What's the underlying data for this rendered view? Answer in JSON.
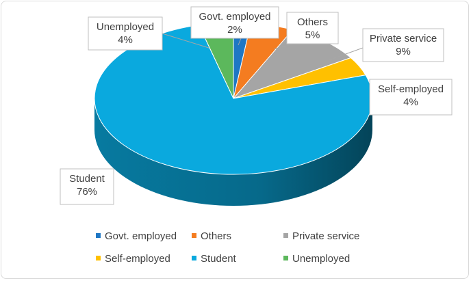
{
  "chart_data": {
    "type": "pie",
    "style": "3d",
    "title": "",
    "categories": [
      "Govt. employed",
      "Others",
      "Private service",
      "Self-employed",
      "Student",
      "Unemployed"
    ],
    "values": [
      2,
      5,
      9,
      4,
      76,
      4
    ],
    "percent_labels": [
      "2%",
      "5%",
      "9%",
      "4%",
      "76%",
      "4%"
    ],
    "colors": [
      "#1f77c4",
      "#f47c20",
      "#a5a5a5",
      "#ffc000",
      "#0aa9de",
      "#5cb85c"
    ],
    "legend_position": "bottom"
  }
}
